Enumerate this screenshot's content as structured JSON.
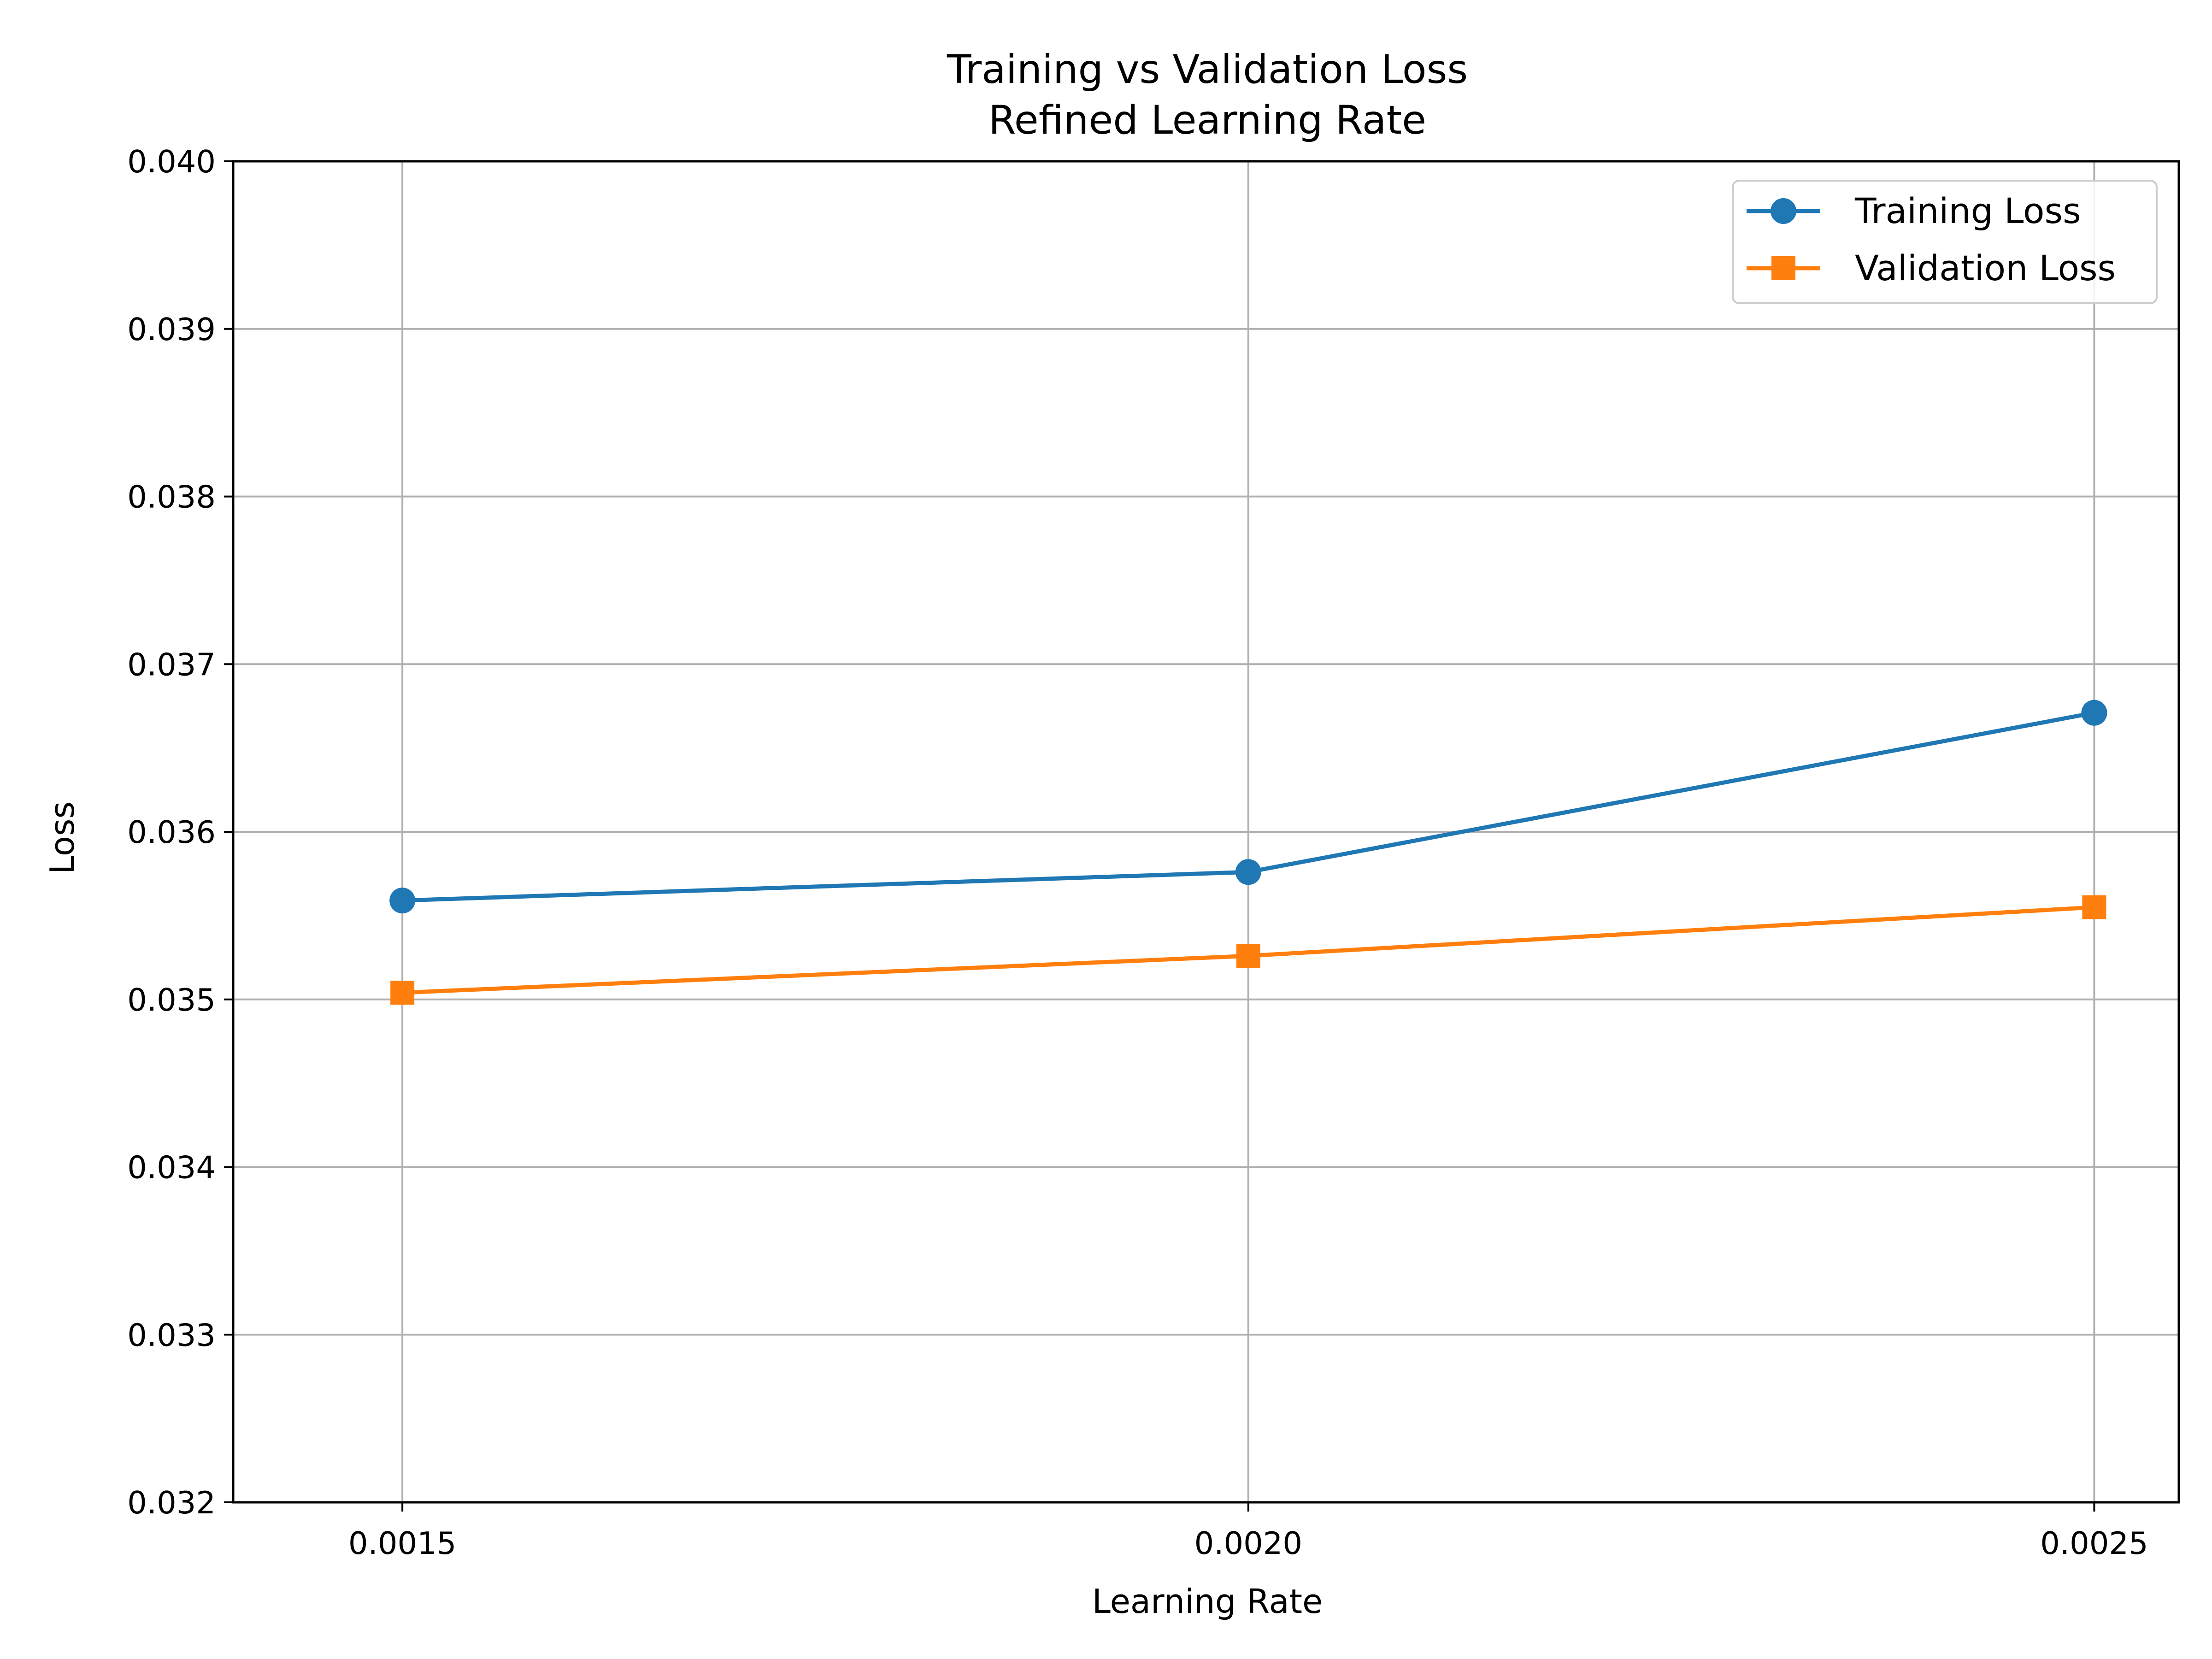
{
  "chart_data": {
    "type": "line",
    "title": "Training vs Validation Loss",
    "subtitle": "Refined Learning Rate",
    "xlabel": "Learning Rate",
    "ylabel": "Loss",
    "x": [
      0.0015,
      0.002,
      0.0025
    ],
    "x_tick_labels": [
      "0.0015",
      "0.0020",
      "0.0025"
    ],
    "xlim": [
      0.0014,
      0.00255
    ],
    "ylim": [
      0.032,
      0.04
    ],
    "y_ticks": [
      0.032,
      0.033,
      0.034,
      0.035,
      0.036,
      0.037,
      0.038,
      0.039,
      0.04
    ],
    "y_tick_labels": [
      "0.032",
      "0.033",
      "0.034",
      "0.035",
      "0.036",
      "0.037",
      "0.038",
      "0.039",
      "0.040"
    ],
    "grid": true,
    "legend_position": "top-right",
    "series": [
      {
        "name": "Training Loss",
        "values": [
          0.03559,
          0.03576,
          0.03671
        ],
        "color": "#1f77b4",
        "marker": "circle"
      },
      {
        "name": "Validation Loss",
        "values": [
          0.03504,
          0.03526,
          0.03555
        ],
        "color": "#ff7f0e",
        "marker": "square"
      }
    ]
  }
}
